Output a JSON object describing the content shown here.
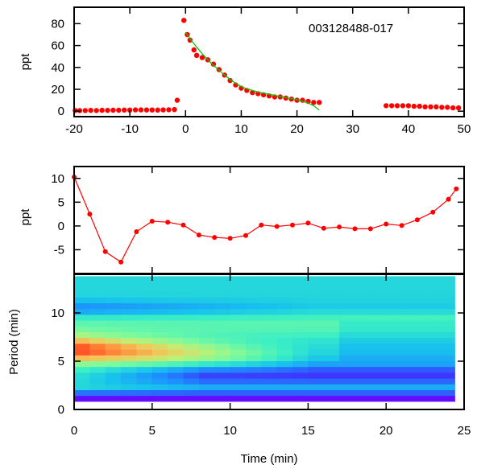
{
  "chart_data": [
    {
      "type": "scatter",
      "annotation": "003128488-017",
      "ylabel": "ppt",
      "xlim": [
        -20,
        50
      ],
      "ylim": [
        -5,
        95
      ],
      "xticks": [
        -20,
        -10,
        0,
        10,
        20,
        30,
        40,
        50
      ],
      "yticks": [
        0,
        20,
        40,
        60,
        80
      ],
      "grid": false,
      "series": [
        {
          "kind": "points",
          "color": "#ff0000",
          "x": [
            -19.8,
            -19,
            -18,
            -17,
            -16,
            -15,
            -14,
            -13,
            -12,
            -11,
            -10,
            -9,
            -8,
            -7,
            -6,
            -5,
            -4,
            -3,
            -2,
            -1.5,
            -0.3,
            0.3,
            0.8,
            1.5,
            2,
            3,
            4,
            5,
            6,
            7,
            8,
            9,
            10,
            11,
            12,
            13,
            14,
            15,
            16,
            17,
            18,
            19,
            20,
            21,
            22,
            23,
            24,
            36,
            37,
            38,
            39,
            40,
            41,
            42,
            43,
            44,
            45,
            46,
            47,
            48,
            49
          ],
          "y": [
            0.6,
            0.5,
            0.6,
            0.7,
            0.6,
            0.8,
            0.7,
            0.9,
            0.9,
            1.0,
            1.0,
            1.2,
            1.2,
            1.1,
            1.1,
            1.0,
            1.2,
            1.3,
            1.5,
            10,
            83,
            70,
            65,
            56,
            51,
            49,
            47,
            43,
            38,
            33,
            28,
            24,
            21,
            19,
            17,
            16,
            15,
            14,
            13,
            13,
            12,
            11,
            10,
            10,
            9,
            8,
            8,
            5,
            5,
            5,
            5,
            5,
            4.5,
            4.5,
            4,
            4,
            4,
            3.5,
            3.5,
            3,
            3
          ]
        },
        {
          "kind": "fit",
          "color": "#00cc00",
          "x": [
            0,
            1,
            2,
            3,
            4,
            5,
            6,
            7,
            8,
            9,
            10,
            11,
            12,
            13,
            14,
            15,
            16,
            17,
            18,
            19,
            20,
            21,
            22,
            23,
            24
          ],
          "y": [
            72,
            65,
            58.5,
            52.5,
            47,
            42,
            37.5,
            33,
            29,
            25.5,
            22.5,
            20.5,
            19,
            17.5,
            16.5,
            15.5,
            14.5,
            13.5,
            12.5,
            11.5,
            10.5,
            9,
            7.5,
            5,
            1
          ]
        }
      ]
    },
    {
      "type": "line",
      "ylabel": "ppt",
      "xlim": [
        0,
        25
      ],
      "ylim": [
        -10,
        12.5
      ],
      "yticks": [
        -5,
        0,
        5,
        10
      ],
      "grid": false,
      "series": [
        {
          "color": "#ff0000",
          "x": [
            0,
            1,
            2,
            3,
            4,
            5,
            6,
            7,
            8,
            9,
            10,
            11,
            12,
            13,
            14,
            15,
            16,
            17,
            18,
            19,
            20,
            21,
            22,
            23,
            24,
            24.5
          ],
          "y": [
            10.3,
            2.5,
            -5.4,
            -7.6,
            -1.2,
            1.0,
            0.8,
            0.2,
            -1.9,
            -2.4,
            -2.6,
            -2.0,
            0.2,
            -0.1,
            0.2,
            0.6,
            -0.5,
            -0.2,
            -0.6,
            -0.6,
            0.4,
            0.1,
            1.3,
            2.9,
            5.6,
            7.8
          ]
        }
      ]
    },
    {
      "type": "heatmap",
      "xlabel": "Time (min)",
      "ylabel": "Period (min)",
      "xlim": [
        0,
        25
      ],
      "ylim": [
        0,
        14
      ],
      "xticks": [
        0,
        5,
        10,
        15,
        20,
        25
      ],
      "yticks": [
        0,
        5,
        10
      ],
      "colormap": [
        "#6f00ff",
        "#3a3cff",
        "#1e8cff",
        "#17c4ec",
        "#39eec6",
        "#7bfa9d",
        "#bff076",
        "#f2c75a",
        "#ff8a3c",
        "#ff3b1a"
      ],
      "t_bins": [
        0,
        1,
        2,
        3,
        4,
        5,
        6,
        7,
        8,
        9,
        10,
        11,
        12,
        13,
        14,
        15,
        16,
        17,
        18,
        19,
        20,
        21,
        22,
        23,
        24
      ],
      "period_bins": [
        1.15,
        1.75,
        2.35,
        2.95,
        3.55,
        4.15,
        4.75,
        5.35,
        5.95,
        6.55,
        7.15,
        7.75,
        8.35,
        8.95,
        9.55,
        10.15,
        10.75,
        11.35,
        11.95,
        12.55,
        13.15,
        13.75
      ]
    }
  ],
  "colors": {
    "points": "#ff0000",
    "fit": "#00cc00"
  }
}
